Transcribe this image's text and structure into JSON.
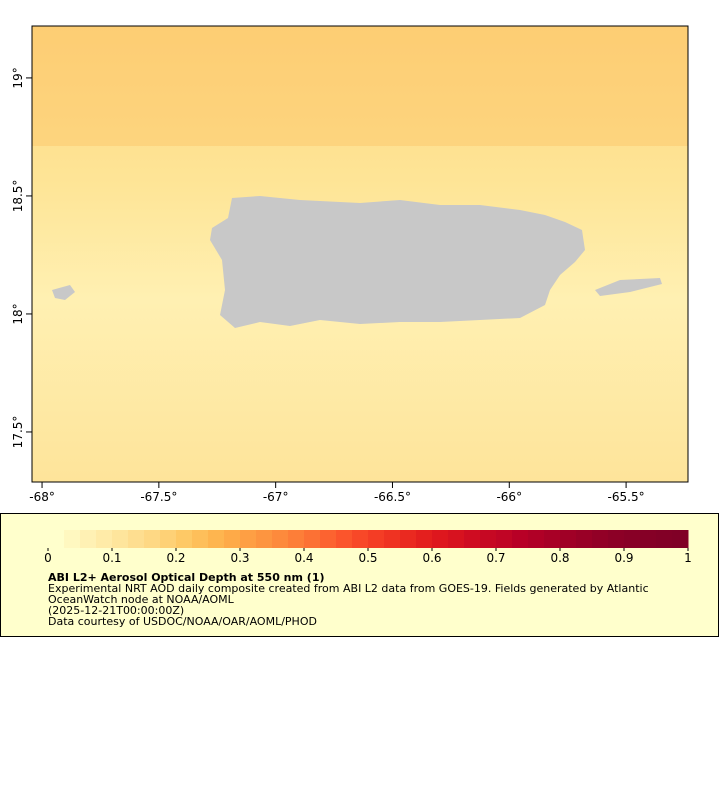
{
  "map": {
    "xlim": [
      -68.043,
      -65.235
    ],
    "ylim": [
      17.288,
      19.22
    ],
    "xticks": [
      {
        "value": -68,
        "label": "-68°"
      },
      {
        "value": -67.5,
        "label": "-67.5°"
      },
      {
        "value": -67,
        "label": "-67°"
      },
      {
        "value": -66.5,
        "label": "-66.5°"
      },
      {
        "value": -66,
        "label": "-66°"
      },
      {
        "value": -65.5,
        "label": "-65.5°"
      }
    ],
    "yticks": [
      {
        "value": 17.5,
        "label": "17.5°"
      },
      {
        "value": 18,
        "label": "18°"
      },
      {
        "value": 18.5,
        "label": "18.5°"
      },
      {
        "value": 19,
        "label": "19°"
      }
    ]
  },
  "legend": {
    "colorbar": {
      "range": [
        0,
        1
      ],
      "ticks": [
        0,
        0.1,
        0.2,
        0.3,
        0.4,
        0.5,
        0.6,
        0.7,
        0.8,
        0.9,
        1
      ],
      "colors": [
        "#ffffcc",
        "#fff8c0",
        "#fff1b4",
        "#ffeba8",
        "#fee59c",
        "#fede90",
        "#fed884",
        "#fed176",
        "#fec966",
        "#febf5a",
        "#feb54f",
        "#feaa48",
        "#fe9f44",
        "#fd9540",
        "#fd8a3c",
        "#fd7e38",
        "#fc7134",
        "#fc6330",
        "#fb552c",
        "#f84828",
        "#f43d25",
        "#ef3322",
        "#ea2920",
        "#e41f1e",
        "#de171e",
        "#d7121f",
        "#cf0c21",
        "#c60823",
        "#c00525",
        "#b80026",
        "#b00026",
        "#a80026",
        "#a00026",
        "#990026",
        "#920026",
        "#8c0026",
        "#880026",
        "#850026",
        "#820026",
        "#800026"
      ]
    },
    "title": "ABI L2+ Aerosol Optical Depth at 550 nm (1)",
    "lines": [
      "Experimental NRT AOD daily composite created from ABI L2 data from GOES-19. Fields generated by Atlantic",
      "OceanWatch node at NOAA/AOML",
      "(2025-12-21T00:00:00Z)",
      "Data courtesy of USDOC/NOAA/OAR/AOML/PHOD"
    ]
  }
}
